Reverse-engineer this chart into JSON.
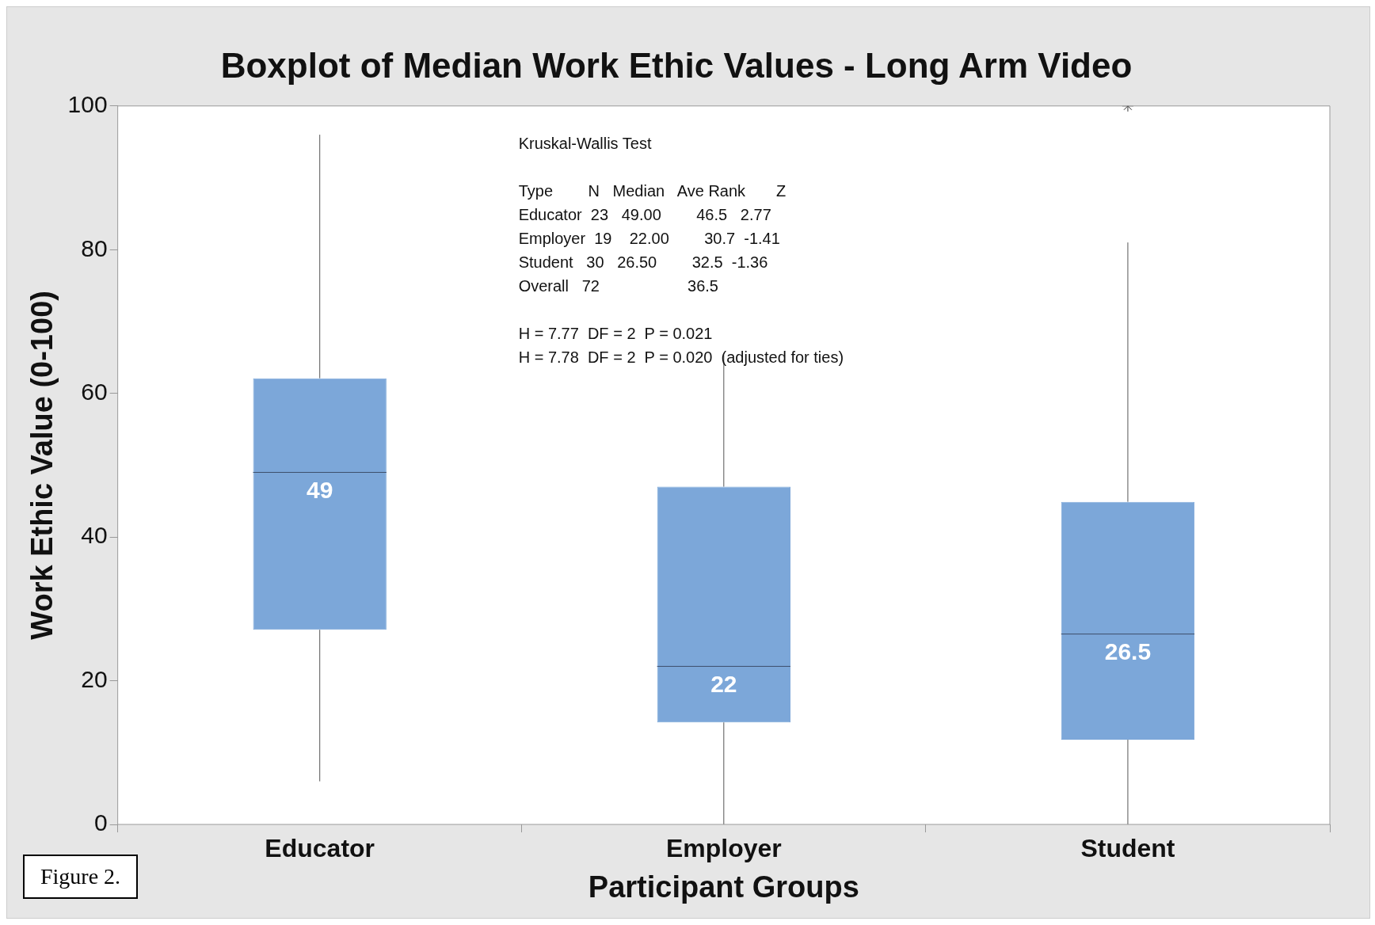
{
  "chart_data": {
    "type": "box",
    "title": "Boxplot of Median Work Ethic Values - Long Arm Video",
    "xlabel": "Participant Groups",
    "ylabel": "Work Ethic Value (0-100)",
    "categories": [
      "Educator",
      "Employer",
      "Student"
    ],
    "boxes": [
      {
        "low": 6,
        "q1": 27.1,
        "median": 49,
        "q3": 62.1,
        "high": 96
      },
      {
        "low": 0,
        "q1": 14.2,
        "median": 22,
        "q3": 47,
        "high": 65.3
      },
      {
        "low": 0,
        "q1": 11.8,
        "median": 26.5,
        "q3": 44.9,
        "high": 81,
        "outliers": [
          100
        ]
      }
    ],
    "color": "#7ca7d9",
    "ylim": [
      0,
      100
    ],
    "yticks": [
      0,
      20,
      40,
      60,
      80,
      100
    ],
    "annotations": [
      "Kruskal-Wallis Test",
      "Type        N   Median   Ave Rank       Z",
      "Educator  23   49.00        46.5   2.77",
      "Employer  19    22.00        30.7  -1.41",
      "Student   30   26.50        32.5  -1.36",
      "Overall   72                    36.5",
      "H = 7.77  DF = 2  P = 0.021",
      "H = 7.78  DF = 2  P = 0.020  (adjusted for ties)",
      "Figure 2.",
      {
        "text": "49",
        "x": "Educator",
        "y": 49
      },
      {
        "text": "22",
        "x": "Employer",
        "y": 22
      },
      {
        "text": "26.5",
        "x": "Student",
        "y": 26.5
      }
    ]
  }
}
